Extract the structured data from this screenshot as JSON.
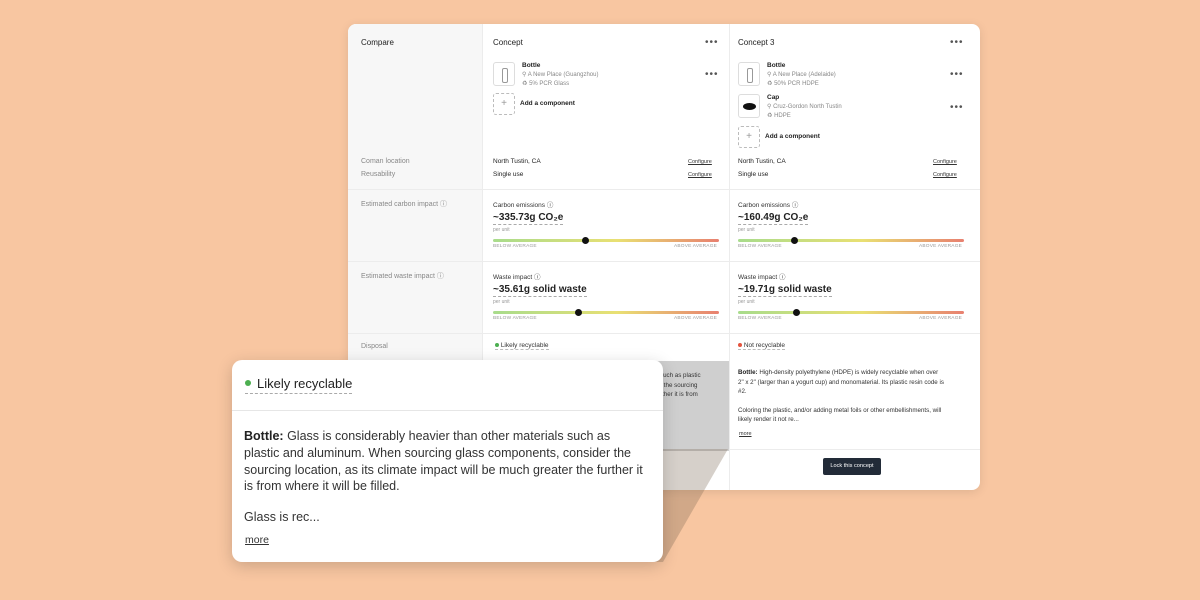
{
  "labels": {
    "compare": "Compare",
    "coman_location": "Coman location",
    "reusability": "Reusability",
    "carbon": "Estimated carbon impact",
    "waste": "Estimated waste impact",
    "disposal": "Disposal"
  },
  "colors": {
    "bar_low": "#a8dc8c",
    "bar_mid": "#e9e073",
    "bar_high": "#e88070",
    "recyclable": "#4caf50",
    "not_recyclable": "#e5533d",
    "lock_button": "#222b38"
  },
  "concepts": [
    {
      "title": "Concept",
      "menu": "•••",
      "components": [
        {
          "name": "Bottle",
          "location": "A New Place (Guangzhou)",
          "material": "5% PCR Glass",
          "icon": "bottle-icon",
          "menu": "•••"
        }
      ],
      "add_component": "Add a component",
      "coman_location": "North Tustin, CA",
      "reusability": "Single use",
      "configure": "Configure",
      "carbon": {
        "label": "Carbon emissions",
        "value": "~335.73g CO₂e",
        "per": "per unit",
        "position": 0.41
      },
      "waste": {
        "label": "Waste impact",
        "value": "~35.61g solid waste",
        "per": "per unit",
        "position": 0.38
      },
      "scale_low": "BELOW AVERAGE",
      "scale_high": "ABOVE AVERAGE",
      "disposal": {
        "status": "Likely recyclable",
        "color": "#4caf50"
      },
      "desc_partial": [
        "such as plastic",
        "r the sourcing",
        "rther it is from"
      ]
    },
    {
      "title": "Concept 3",
      "menu": "•••",
      "components": [
        {
          "name": "Bottle",
          "location": "A New Place (Adelaide)",
          "material": "50% PCR HDPE",
          "icon": "bottle-icon",
          "menu": "•••"
        },
        {
          "name": "Cap",
          "location": "Cruz-Gordon North Tustin",
          "material": "HDPE",
          "icon": "cap-icon",
          "menu": "•••"
        }
      ],
      "add_component": "Add a component",
      "coman_location": "North Tustin, CA",
      "reusability": "Single use",
      "configure": "Configure",
      "carbon": {
        "label": "Carbon emissions",
        "value": "~160.49g CO₂e",
        "per": "per unit",
        "position": 0.25
      },
      "waste": {
        "label": "Waste impact",
        "value": "~19.71g solid waste",
        "per": "per unit",
        "position": 0.26
      },
      "scale_low": "BELOW AVERAGE",
      "scale_high": "ABOVE AVERAGE",
      "disposal": {
        "status": "Not recyclable",
        "color": "#e5533d"
      },
      "desc_bold": "Bottle:",
      "desc_lines": [
        "High-density polyethylene (HDPE) is widely recyclable when over",
        "2\" x 2\" (larger than a yogurt cup) and monomaterial. Its plastic resin code is",
        "#2."
      ],
      "desc_lines2": [
        "Coloring the plastic, and/or adding metal foils or other embellishments, will",
        "likely render it not re..."
      ],
      "more": "more",
      "lock": "Lock this concept"
    }
  ],
  "popup": {
    "status": "Likely recyclable",
    "bold": "Bottle:",
    "text": "Glass is considerably heavier than other materials such as plastic and aluminum. When sourcing glass components, consider the sourcing location, as its climate impact will be much greater the further it is from where it will be filled.",
    "truncated": "Glass is rec...",
    "more": "more"
  }
}
